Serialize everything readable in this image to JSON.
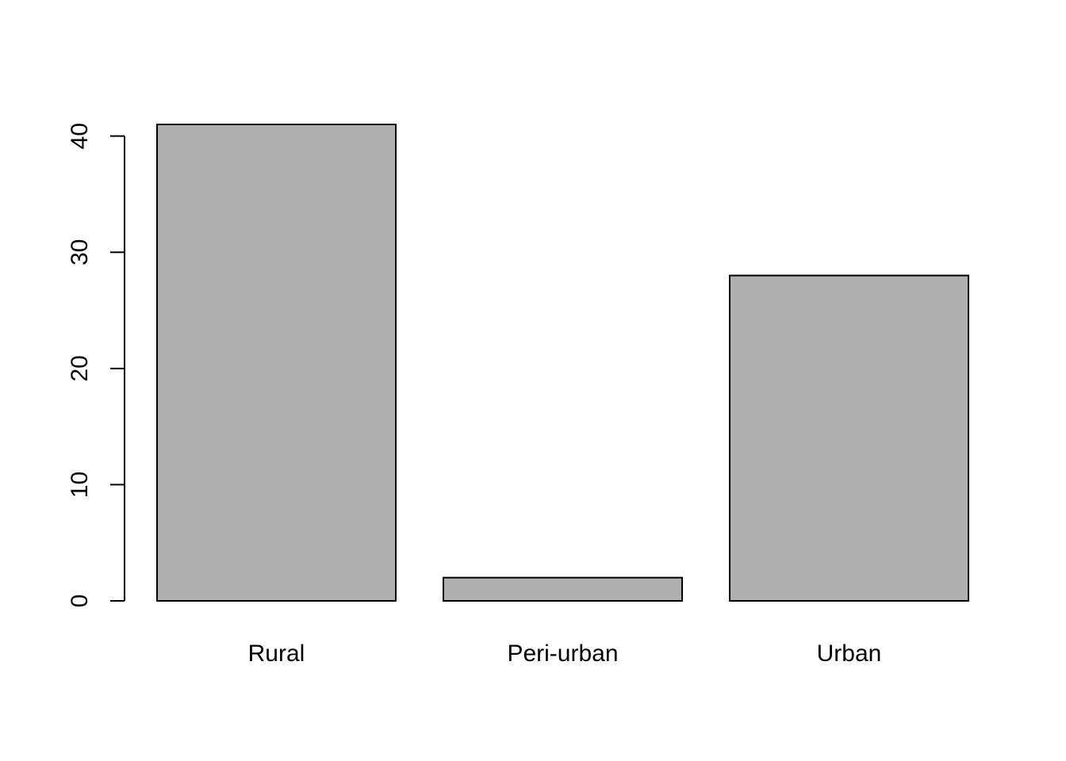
{
  "chart_data": {
    "type": "bar",
    "categories": [
      "Rural",
      "Peri-urban",
      "Urban"
    ],
    "values": [
      41,
      2,
      28
    ],
    "title": "",
    "xlabel": "",
    "ylabel": "",
    "ylim": [
      0,
      41
    ],
    "yticks": [
      0,
      10,
      20,
      30,
      40
    ],
    "grid": false,
    "legend": "none",
    "bar_color": "#b0b0b0",
    "border_color": "#000000"
  }
}
